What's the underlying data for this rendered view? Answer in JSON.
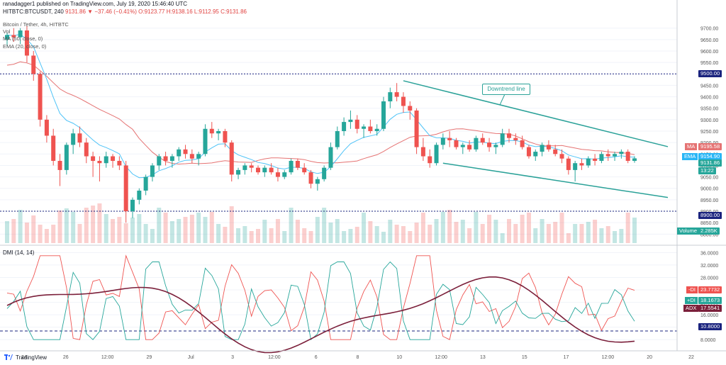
{
  "header": {
    "publisher_line": "ranadagger1 published on TradingView.com, July 19, 2020 15:46:40 UTC",
    "symbol_line": "HITBTC:BTCUSDT, 240",
    "ohlc": "9131.86  ▼ −37.46 (−0.41%)  O:9123.77  H:9138.16  L:9112.95  C:9131.86",
    "title": "Bitcoin / Tether, 4h, HITBTC",
    "ind_vol": "Vol",
    "ind_ma": "MA (50, close, 0)",
    "ind_ema": "EMA (20, close, 0)"
  },
  "dmi_title": "DMI (14, 14)",
  "annotation": "Downtrend line",
  "footer": "TradingView",
  "tags": {
    "ma_label": "MA",
    "ma_value": "9195.58",
    "ema_label": "EMA",
    "ema_value": "9154.90",
    "price_value": "9131.86",
    "countdown": "13:22",
    "level_high": "9500.00",
    "level_low": "8900.00",
    "volume_label": "Volume",
    "volume_value": "2.285K",
    "minus_di_label": "-DI",
    "minus_di_value": "23.7732",
    "plus_di_label": "+DI",
    "plus_di_value": "18.1673",
    "adx_label": "ADX",
    "adx_value": "17.5541",
    "dmi_level": "10.8000"
  },
  "colors": {
    "up": "#26a69a",
    "down": "#ef5350",
    "ma": "#e57373",
    "ema": "#4fc3f7",
    "trend": "#2aa198",
    "level": "#1a237e",
    "adx": "#7b1f3a",
    "minus_di": "#ef5350",
    "plus_di": "#26a69a"
  },
  "chart_data": {
    "type": "candlestick",
    "x_tick_labels": [
      "24",
      "26",
      "12:00",
      "29",
      "Jul",
      "3",
      "12:00",
      "6",
      "8",
      "10",
      "12:00",
      "13",
      "15",
      "17",
      "12:00",
      "20",
      "22"
    ],
    "price_axis": {
      "ticks": [
        8800,
        8850,
        8900,
        8950,
        9000,
        9050,
        9100,
        9150,
        9200,
        9250,
        9300,
        9350,
        9400,
        9450,
        9500,
        9550,
        9600,
        9650,
        9700
      ],
      "range": [
        8770,
        9730
      ]
    },
    "dmi_axis": {
      "ticks": [
        8.0,
        12.0,
        16.0,
        20.0,
        24.0,
        28.0,
        32.0,
        36.0
      ],
      "range": [
        6.0,
        37.0
      ]
    },
    "horizontal_levels": [
      9500,
      8900
    ],
    "dmi_level": 10.8,
    "candles": [
      [
        9650,
        9680,
        9620,
        9670
      ],
      [
        9670,
        9700,
        9640,
        9660
      ],
      [
        9660,
        9700,
        9630,
        9690
      ],
      [
        9690,
        9710,
        9550,
        9580
      ],
      [
        9580,
        9600,
        9470,
        9500
      ],
      [
        9500,
        9510,
        9270,
        9300
      ],
      [
        9300,
        9320,
        9200,
        9230
      ],
      [
        9230,
        9260,
        9100,
        9120
      ],
      [
        9120,
        9150,
        9010,
        9080
      ],
      [
        9080,
        9200,
        9060,
        9190
      ],
      [
        9190,
        9260,
        9150,
        9240
      ],
      [
        9240,
        9270,
        9180,
        9200
      ],
      [
        9200,
        9220,
        9110,
        9140
      ],
      [
        9140,
        9160,
        9050,
        9120
      ],
      [
        9120,
        9140,
        9030,
        9110
      ],
      [
        9110,
        9160,
        9090,
        9140
      ],
      [
        9140,
        9150,
        9090,
        9120
      ],
      [
        9120,
        9140,
        9080,
        9100
      ],
      [
        9100,
        9120,
        8850,
        8900
      ],
      [
        8900,
        8960,
        8870,
        8950
      ],
      [
        8950,
        9000,
        8930,
        8990
      ],
      [
        8990,
        9060,
        8970,
        9050
      ],
      [
        9050,
        9110,
        9030,
        9100
      ],
      [
        9100,
        9150,
        9080,
        9140
      ],
      [
        9140,
        9160,
        9100,
        9120
      ],
      [
        9120,
        9150,
        9090,
        9140
      ],
      [
        9140,
        9180,
        9120,
        9170
      ],
      [
        9170,
        9190,
        9130,
        9150
      ],
      [
        9150,
        9170,
        9110,
        9130
      ],
      [
        9130,
        9160,
        9100,
        9150
      ],
      [
        9150,
        9280,
        9140,
        9260
      ],
      [
        9260,
        9290,
        9220,
        9240
      ],
      [
        9240,
        9260,
        9210,
        9250
      ],
      [
        9250,
        9260,
        9180,
        9200
      ],
      [
        9200,
        9210,
        9030,
        9060
      ],
      [
        9060,
        9090,
        9040,
        9080
      ],
      [
        9080,
        9110,
        9060,
        9100
      ],
      [
        9100,
        9110,
        9070,
        9090
      ],
      [
        9090,
        9100,
        9060,
        9070
      ],
      [
        9070,
        9100,
        9050,
        9090
      ],
      [
        9090,
        9110,
        9060,
        9070
      ],
      [
        9070,
        9090,
        9030,
        9050
      ],
      [
        9050,
        9080,
        9040,
        9070
      ],
      [
        9070,
        9130,
        9060,
        9120
      ],
      [
        9120,
        9130,
        9080,
        9090
      ],
      [
        9090,
        9110,
        9060,
        9070
      ],
      [
        9070,
        9080,
        9000,
        9020
      ],
      [
        9020,
        9050,
        8990,
        9040
      ],
      [
        9040,
        9100,
        9030,
        9090
      ],
      [
        9090,
        9200,
        9080,
        9180
      ],
      [
        9180,
        9270,
        9170,
        9250
      ],
      [
        9250,
        9310,
        9230,
        9290
      ],
      [
        9290,
        9340,
        9260,
        9300
      ],
      [
        9300,
        9320,
        9240,
        9260
      ],
      [
        9260,
        9280,
        9220,
        9270
      ],
      [
        9270,
        9300,
        9240,
        9250
      ],
      [
        9250,
        9280,
        9230,
        9260
      ],
      [
        9260,
        9400,
        9250,
        9380
      ],
      [
        9380,
        9440,
        9350,
        9420
      ],
      [
        9420,
        9460,
        9380,
        9400
      ],
      [
        9400,
        9420,
        9330,
        9360
      ],
      [
        9360,
        9380,
        9300,
        9340
      ],
      [
        9340,
        9350,
        9150,
        9180
      ],
      [
        9180,
        9220,
        9120,
        9140
      ],
      [
        9140,
        9170,
        9090,
        9110
      ],
      [
        9110,
        9200,
        9100,
        9190
      ],
      [
        9190,
        9240,
        9170,
        9220
      ],
      [
        9220,
        9250,
        9180,
        9210
      ],
      [
        9210,
        9220,
        9170,
        9180
      ],
      [
        9180,
        9200,
        9150,
        9190
      ],
      [
        9190,
        9210,
        9160,
        9170
      ],
      [
        9170,
        9230,
        9160,
        9220
      ],
      [
        9220,
        9240,
        9190,
        9200
      ],
      [
        9200,
        9220,
        9160,
        9180
      ],
      [
        9180,
        9200,
        9150,
        9190
      ],
      [
        9190,
        9260,
        9180,
        9240
      ],
      [
        9240,
        9260,
        9200,
        9220
      ],
      [
        9220,
        9240,
        9190,
        9210
      ],
      [
        9210,
        9230,
        9170,
        9180
      ],
      [
        9180,
        9190,
        9130,
        9140
      ],
      [
        9140,
        9170,
        9120,
        9160
      ],
      [
        9160,
        9200,
        9140,
        9190
      ],
      [
        9190,
        9210,
        9160,
        9170
      ],
      [
        9170,
        9190,
        9140,
        9150
      ],
      [
        9150,
        9170,
        9110,
        9130
      ],
      [
        9130,
        9140,
        9060,
        9080
      ],
      [
        9080,
        9120,
        9030,
        9110
      ],
      [
        9110,
        9130,
        9080,
        9100
      ],
      [
        9100,
        9140,
        9090,
        9130
      ],
      [
        9130,
        9150,
        9100,
        9120
      ],
      [
        9120,
        9160,
        9110,
        9150
      ],
      [
        9150,
        9170,
        9120,
        9140
      ],
      [
        9140,
        9160,
        9120,
        9150
      ],
      [
        9150,
        9170,
        9130,
        9160
      ],
      [
        9160,
        9170,
        9110,
        9120
      ],
      [
        9120,
        9140,
        9112,
        9131
      ]
    ]
  }
}
